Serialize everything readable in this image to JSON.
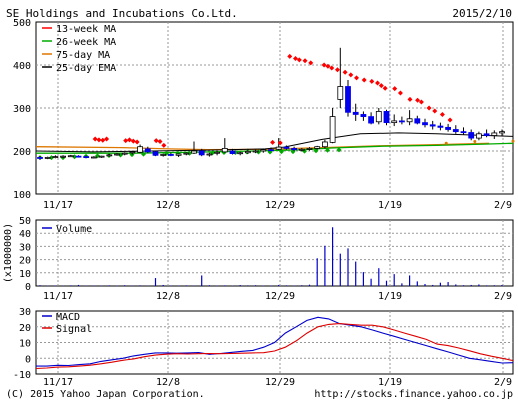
{
  "header": {
    "company": "SE Holdings and Incubations Co.Ltd.",
    "date": "2015/2/10"
  },
  "footer": {
    "copyright": "(C) 2015 Yahoo Japan Corporation.",
    "url": "http://stocks.finance.yahoo.co.jp"
  },
  "colors": {
    "up_candle": "#ffffff",
    "down_candle": "#0000ee",
    "ma13": "#ff0000",
    "ma26": "#00aa00",
    "ma75": "#dd7700",
    "ema25": "#000000",
    "volume": "#0000cc",
    "macd": "#0000cc",
    "signal": "#dd0000",
    "grid": "#999999"
  },
  "chart_data": [
    {
      "type": "candlestick",
      "x_labels": [
        "11/17",
        "12/8",
        "12/29",
        "1/19",
        "2/9"
      ],
      "ylim": [
        100,
        500
      ],
      "y_ticks": [
        "500",
        "400",
        "300",
        "200",
        "100"
      ],
      "grid": true,
      "legend_position": "top-left",
      "legend": [
        {
          "name": "13-week MA",
          "color": "#ff0000"
        },
        {
          "name": "26-week MA",
          "color": "#00aa00"
        },
        {
          "name": "75-day MA",
          "color": "#dd7700"
        },
        {
          "name": "25-day EMA",
          "color": "#000000"
        }
      ],
      "candles": [
        [
          185,
          188,
          180,
          183
        ],
        [
          183,
          187,
          181,
          185
        ],
        [
          186,
          190,
          183,
          187
        ],
        [
          187,
          190,
          184,
          188
        ],
        [
          188,
          191,
          186,
          189
        ],
        [
          188,
          190,
          186,
          187
        ],
        [
          187,
          189,
          184,
          185
        ],
        [
          185,
          188,
          183,
          186
        ],
        [
          186,
          189,
          184,
          188
        ],
        [
          189,
          193,
          187,
          191
        ],
        [
          191,
          195,
          189,
          193
        ],
        [
          193,
          197,
          190,
          195
        ],
        [
          196,
          200,
          192,
          198
        ],
        [
          197,
          215,
          195,
          210
        ],
        [
          205,
          210,
          195,
          198
        ],
        [
          198,
          200,
          188,
          190
        ],
        [
          190,
          194,
          187,
          192
        ],
        [
          192,
          196,
          188,
          190
        ],
        [
          190,
          194,
          186,
          193
        ],
        [
          193,
          197,
          190,
          195
        ],
        [
          195,
          222,
          193,
          200
        ],
        [
          200,
          205,
          188,
          191
        ],
        [
          191,
          196,
          187,
          193
        ],
        [
          195,
          200,
          190,
          197
        ],
        [
          198,
          230,
          196,
          206
        ],
        [
          200,
          205,
          192,
          194
        ],
        [
          194,
          198,
          190,
          196
        ],
        [
          196,
          205,
          193,
          199
        ],
        [
          199,
          203,
          195,
          200
        ],
        [
          200,
          206,
          196,
          203
        ],
        [
          203,
          208,
          200,
          201
        ],
        [
          204,
          230,
          202,
          209
        ],
        [
          209,
          213,
          203,
          206
        ],
        [
          206,
          210,
          200,
          203
        ],
        [
          203,
          207,
          199,
          204
        ],
        [
          204,
          209,
          201,
          206
        ],
        [
          206,
          212,
          203,
          210
        ],
        [
          210,
          226,
          206,
          221
        ],
        [
          220,
          300,
          218,
          280
        ],
        [
          320,
          440,
          300,
          350
        ],
        [
          350,
          365,
          280,
          290
        ],
        [
          290,
          310,
          270,
          285
        ],
        [
          285,
          292,
          270,
          280
        ],
        [
          280,
          290,
          262,
          265
        ],
        [
          268,
          300,
          262,
          292
        ],
        [
          292,
          296,
          260,
          266
        ],
        [
          266,
          285,
          258,
          270
        ],
        [
          270,
          280,
          262,
          268
        ],
        [
          268,
          295,
          260,
          275
        ],
        [
          275,
          282,
          262,
          265
        ],
        [
          266,
          275,
          255,
          261
        ],
        [
          261,
          270,
          250,
          258
        ],
        [
          258,
          266,
          248,
          255
        ],
        [
          255,
          263,
          245,
          250
        ],
        [
          250,
          260,
          240,
          245
        ],
        [
          245,
          255,
          238,
          243
        ],
        [
          243,
          250,
          225,
          230
        ],
        [
          230,
          245,
          225,
          240
        ],
        [
          240,
          250,
          232,
          236
        ],
        [
          236,
          248,
          228,
          242
        ],
        [
          242,
          250,
          236,
          245
        ]
      ],
      "ma13": [
        228,
        226,
        225,
        228,
        224,
        226,
        223,
        221,
        224,
        222,
        213,
        220,
        219,
        420,
        415,
        412,
        410,
        405,
        400,
        397,
        393,
        389,
        383,
        377,
        370,
        365,
        362,
        358,
        352,
        346,
        345,
        335,
        320,
        318,
        314,
        300,
        293,
        285,
        272
      ],
      "ma26": [
        180,
        180,
        180,
        182,
        183,
        184,
        185,
        186,
        187,
        188,
        189,
        190,
        190,
        190,
        191,
        191,
        192,
        192,
        193,
        193,
        193,
        194,
        194,
        195,
        196,
        197,
        198
      ],
      "ma75_line": [
        [
          0,
          210
        ],
        [
          90,
          208
        ],
        [
          140,
          205
        ],
        [
          180,
          203
        ],
        [
          240,
          204
        ],
        [
          300,
          208
        ],
        [
          360,
          212
        ],
        [
          420,
          215
        ],
        [
          475,
          218
        ]
      ],
      "ma75_dots": [
        [
          430,
          218
        ],
        [
          460,
          222
        ],
        [
          500,
          223
        ]
      ],
      "ema25_line": [
        [
          0,
          200
        ],
        [
          60,
          198
        ],
        [
          120,
          200
        ],
        [
          180,
          202
        ],
        [
          240,
          205
        ],
        [
          260,
          209
        ],
        [
          300,
          227
        ],
        [
          340,
          240
        ],
        [
          380,
          242
        ],
        [
          420,
          240
        ],
        [
          460,
          237
        ],
        [
          500,
          234
        ]
      ],
      "ma26_line": [
        [
          0,
          195
        ],
        [
          100,
          195
        ],
        [
          160,
          197
        ],
        [
          230,
          200
        ],
        [
          280,
          203
        ],
        [
          310,
          207
        ],
        [
          360,
          211
        ],
        [
          420,
          213
        ],
        [
          470,
          216
        ],
        [
          500,
          218
        ]
      ]
    },
    {
      "type": "bar",
      "title": "Volume",
      "ylabel": "(x1000000)",
      "ylim": [
        0,
        50
      ],
      "y_ticks": [
        "50",
        "40",
        "30",
        "20",
        "10",
        "0"
      ],
      "x_labels": [
        "11/17",
        "12/8",
        "12/29",
        "1/19",
        "2/9"
      ],
      "values": [
        0.6,
        0.3,
        0.4,
        0.2,
        0.5,
        0.8,
        0.3,
        0.4,
        0.3,
        0.5,
        0.3,
        0.6,
        0.4,
        0.5,
        0.3,
        6.0,
        0.8,
        0.4,
        0.3,
        0.5,
        0.4,
        8.0,
        0.6,
        0.3,
        0.5,
        0.3,
        0.7,
        0.5,
        0.6,
        0.3,
        0.4,
        0.8,
        0.5,
        0.3,
        0.6,
        1.0,
        21.0,
        30.5,
        44.5,
        24.5,
        28.5,
        18.5,
        10.5,
        5.5,
        13.5,
        4.0,
        9.0,
        2.0,
        8.0,
        3.5,
        1.5,
        0.8,
        2.5,
        3.0,
        1.2,
        0.6,
        0.8,
        1.2,
        0.5,
        0.6,
        0.8
      ]
    },
    {
      "type": "line",
      "ylim": [
        -10,
        30
      ],
      "y_ticks": [
        "30",
        "20",
        "10",
        "0",
        "-10"
      ],
      "x_labels": [
        "11/17",
        "12/8",
        "12/29",
        "1/19",
        "2/9"
      ],
      "legend_position": "top-left",
      "series": [
        {
          "name": "MACD",
          "color": "#0000cc",
          "values": [
            -5,
            -5,
            -4.5,
            -4.6,
            -4,
            -3.5,
            -2,
            -1,
            0,
            1.5,
            2.5,
            3.4,
            3.4,
            3.2,
            3.4,
            3.6,
            2.5,
            3,
            3.7,
            4.4,
            5,
            7,
            10,
            16,
            20,
            24,
            26,
            25,
            22,
            21,
            20,
            18,
            16,
            14,
            12,
            10,
            8,
            6,
            4,
            2,
            0,
            -1,
            -2,
            -3,
            -2.8
          ]
        },
        {
          "name": "Signal",
          "color": "#dd0000",
          "values": [
            -6.5,
            -6.2,
            -5.6,
            -5.4,
            -5,
            -4.4,
            -3.5,
            -2.5,
            -1.3,
            -0.4,
            1,
            2,
            2.6,
            2.9,
            2.7,
            2.9,
            3,
            2.9,
            3,
            3.2,
            3.4,
            3.5,
            4.6,
            7,
            11,
            16,
            20,
            21.5,
            22,
            21.5,
            21,
            21,
            20,
            18,
            16,
            14,
            12,
            9,
            8,
            6.5,
            4.7,
            2.8,
            1.3,
            0,
            -1.5
          ]
        }
      ]
    }
  ]
}
